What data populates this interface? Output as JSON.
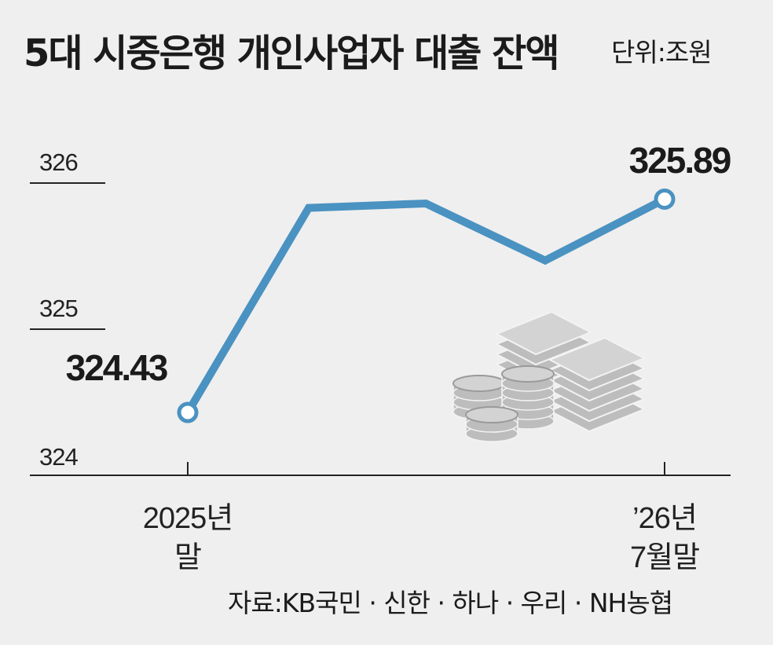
{
  "title": "5대 시중은행 개인사업자 대출 잔액",
  "unit": "단위:조원",
  "source": "자료:KB국민 · 신한 · 하나 · 우리 · NH농협",
  "colors": {
    "line": "#4a92c1",
    "background": "#efefef",
    "axis": "#222222",
    "illustration": "#bdbdbd"
  },
  "illustration": "money-stack-and-coins-icon",
  "chart_data": {
    "type": "line",
    "x": [
      "2025년 말",
      "",
      "",
      "",
      "'26년 7월말"
    ],
    "x_tick_labels": [
      {
        "line1": "2025년",
        "line2": "말"
      },
      {
        "line1": "’26년",
        "line2": "7월말"
      }
    ],
    "values": [
      324.43,
      325.83,
      325.86,
      325.47,
      325.89
    ],
    "data_labels": [
      "324.43",
      "",
      "",
      "",
      "325.89"
    ],
    "y_ticks": [
      "324",
      "325",
      "326"
    ],
    "ylim": [
      324,
      326.3
    ],
    "grid": false,
    "legend": "none"
  }
}
